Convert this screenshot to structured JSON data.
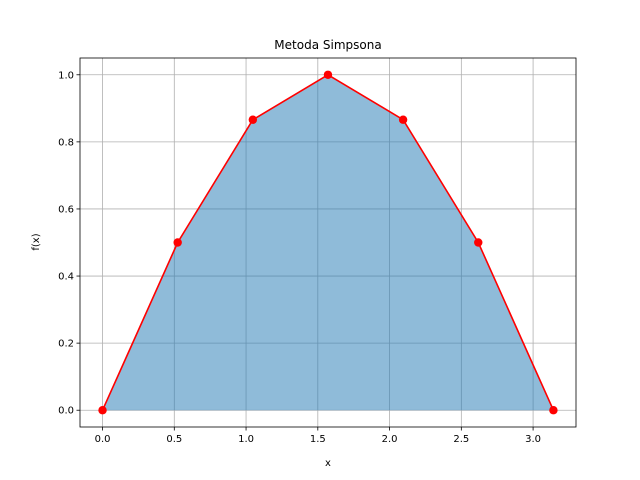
{
  "chart_data": {
    "type": "area",
    "title": "Metoda Simpsona",
    "xlabel": "x",
    "ylabel": "f(x)",
    "xlim": [
      -0.157,
      3.299
    ],
    "ylim": [
      -0.05,
      1.05
    ],
    "xticks": [
      0.0,
      0.5,
      1.0,
      1.5,
      2.0,
      2.5,
      3.0
    ],
    "xtick_labels": [
      "0.0",
      "0.5",
      "1.0",
      "1.5",
      "2.0",
      "2.5",
      "3.0"
    ],
    "yticks": [
      0.0,
      0.2,
      0.4,
      0.6,
      0.8,
      1.0
    ],
    "ytick_labels": [
      "0.0",
      "0.2",
      "0.4",
      "0.6",
      "0.8",
      "1.0"
    ],
    "grid": true,
    "series": [
      {
        "x": [
          0.0,
          0.5236,
          1.0472,
          1.5708,
          2.0944,
          2.618,
          3.1416
        ],
        "y": [
          0.0,
          0.5,
          0.866,
          1.0,
          0.866,
          0.5,
          0.0
        ],
        "line_color": "#ff0000",
        "fill_color": "#1f77b4",
        "fill_opacity": 0.5,
        "marker": "circle"
      }
    ]
  }
}
